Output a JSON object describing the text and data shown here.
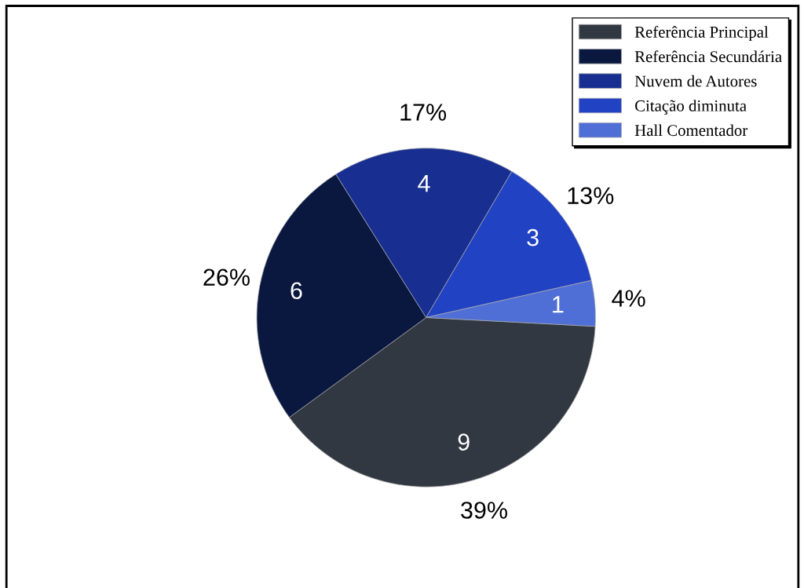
{
  "chart_data": {
    "type": "pie",
    "categories": [
      "Referência Principal",
      "Referência Secundária",
      "Nuvem de Autores",
      "Citação diminuta",
      "Hall Comentador"
    ],
    "values": [
      9,
      6,
      4,
      3,
      1
    ],
    "colors": [
      "#323842",
      "#0a1840",
      "#182f91",
      "#2242c4",
      "#4f6fd6"
    ],
    "value_labels": [
      "9",
      "6",
      "4",
      "3",
      "1"
    ],
    "annotations": [
      "39%",
      "26%",
      "17%",
      "13%",
      "4%"
    ],
    "legend": "top right"
  }
}
